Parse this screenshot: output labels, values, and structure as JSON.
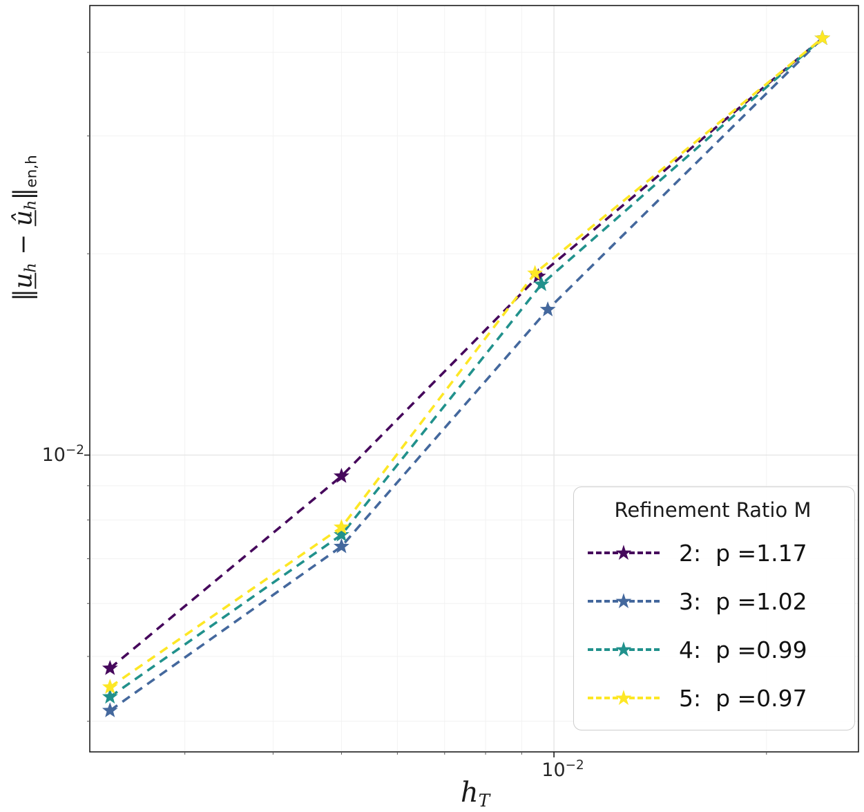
{
  "figure": {
    "background": "#ffffff",
    "spine_color": "#1c1c1c",
    "grid_minor_color": "#f2f2f2",
    "grid_major_color": "#e4e4e4"
  },
  "axes": {
    "x_tick": {
      "base": "10",
      "exp": "−2"
    },
    "y_tick": {
      "base": "10",
      "exp": "−2"
    },
    "xlabel": {
      "base": "h",
      "sub": "T"
    },
    "ylabel": {
      "open": "‖",
      "u1": "u",
      "sub1": "h",
      "minus": " − ",
      "u2": "û",
      "sub2": "h",
      "close": "‖",
      "sub3": "en,h"
    }
  },
  "legend": {
    "title": "Refinement Ratio M",
    "items": [
      {
        "label": "2:  p =1.17",
        "color": "#46085c"
      },
      {
        "label": "3:  p =1.02",
        "color": "#44689d"
      },
      {
        "label": "4:  p =0.99",
        "color": "#21918c"
      },
      {
        "label": "5:  p =0.97",
        "color": "#fde725"
      }
    ]
  },
  "chart_data": {
    "type": "line",
    "title": "",
    "xlabel": "h_T",
    "ylabel": "||u_h - u_hat_h||_en,h",
    "x_scale": "log",
    "y_scale": "log",
    "x_range": [
      0.0022,
      0.027
    ],
    "y_range": [
      0.0036,
      0.047
    ],
    "x_major_ticks": [
      0.01
    ],
    "y_major_ticks": [
      0.01
    ],
    "grid": true,
    "legend_position": "lower right",
    "legend_title": "Refinement Ratio M",
    "marker": "star",
    "linestyle": "dashed",
    "series": [
      {
        "name": "2:  p =1.17",
        "color": "#46085c",
        "x": [
          0.00235,
          0.005,
          0.0095,
          0.024
        ],
        "y": [
          0.0048,
          0.0093,
          0.0185,
          0.042
        ]
      },
      {
        "name": "3:  p =1.02",
        "color": "#44689d",
        "x": [
          0.00235,
          0.005,
          0.0098,
          0.024
        ],
        "y": [
          0.00415,
          0.0073,
          0.0165,
          0.042
        ]
      },
      {
        "name": "4:  p =0.99",
        "color": "#21918c",
        "x": [
          0.00235,
          0.005,
          0.0096,
          0.024
        ],
        "y": [
          0.00435,
          0.0076,
          0.018,
          0.042
        ]
      },
      {
        "name": "5:  p =0.97",
        "color": "#fde725",
        "x": [
          0.00235,
          0.005,
          0.0094,
          0.024
        ],
        "y": [
          0.0045,
          0.0078,
          0.0187,
          0.042
        ]
      }
    ]
  }
}
